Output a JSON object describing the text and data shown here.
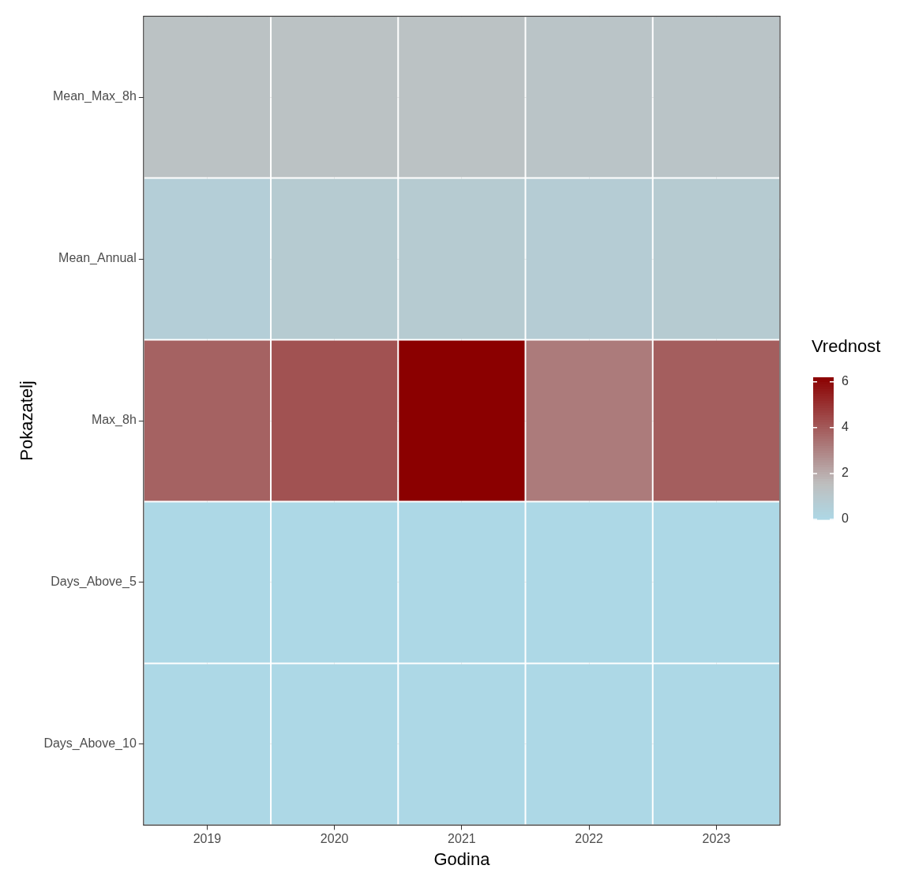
{
  "chart_data": {
    "type": "heatmap",
    "xlabel": "Godina",
    "ylabel": "Pokazatelj",
    "legend_title": "Vrednost",
    "categories": [
      "2019",
      "2020",
      "2021",
      "2022",
      "2023"
    ],
    "y_categories": [
      "Mean_Max_8h",
      "Mean_Annual",
      "Max_8h",
      "Days_Above_5",
      "Days_Above_10"
    ],
    "cells": [
      [
        1.3,
        1.3,
        1.3,
        1.2,
        1.2
      ],
      [
        0.6,
        0.8,
        0.8,
        0.7,
        0.8
      ],
      [
        3.8,
        4.2,
        6.2,
        3.2,
        3.9
      ],
      [
        0,
        0,
        0,
        0,
        0
      ],
      [
        0,
        0,
        0,
        0,
        0
      ]
    ],
    "clim": [
      0,
      6.2
    ],
    "cticks": [
      0,
      2,
      4,
      6
    ],
    "grid": true
  }
}
